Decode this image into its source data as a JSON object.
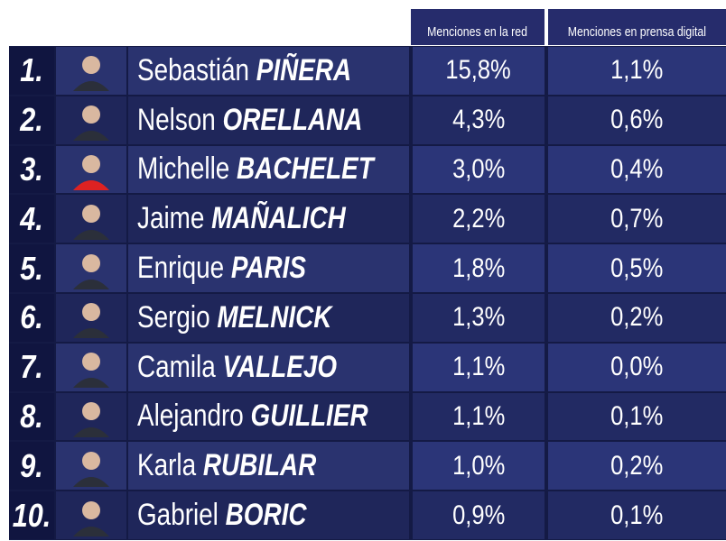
{
  "header": [
    "Menciones en la red",
    "Menciones en prensa digital"
  ],
  "rows": [
    {
      "rank": "1.",
      "first": "Sebastián",
      "last": "PIÑERA",
      "red": "15,8%",
      "prensa": "1,1%"
    },
    {
      "rank": "2.",
      "first": "Nelson",
      "last": "ORELLANA",
      "red": "4,3%",
      "prensa": "0,6%"
    },
    {
      "rank": "3.",
      "first": "Michelle",
      "last": "BACHELET",
      "red": "3,0%",
      "prensa": "0,4%"
    },
    {
      "rank": "4.",
      "first": "Jaime",
      "last": "MAÑALICH",
      "red": "2,2%",
      "prensa": "0,7%"
    },
    {
      "rank": "5.",
      "first": "Enrique",
      "last": "PARIS",
      "red": "1,8%",
      "prensa": "0,5%"
    },
    {
      "rank": "6.",
      "first": "Sergio",
      "last": "MELNICK",
      "red": "1,3%",
      "prensa": "0,2%"
    },
    {
      "rank": "7.",
      "first": "Camila",
      "last": "VALLEJO",
      "red": "1,1%",
      "prensa": "0,0%"
    },
    {
      "rank": "8.",
      "first": "Alejandro",
      "last": "GUILLIER",
      "red": "1,1%",
      "prensa": "0,1%"
    },
    {
      "rank": "9.",
      "first": "Karla",
      "last": "RUBILAR",
      "red": "1,0%",
      "prensa": "0,2%"
    },
    {
      "rank": "10.",
      "first": "Gabriel",
      "last": "BORIC",
      "red": "0,9%",
      "prensa": "0,1%"
    }
  ]
}
